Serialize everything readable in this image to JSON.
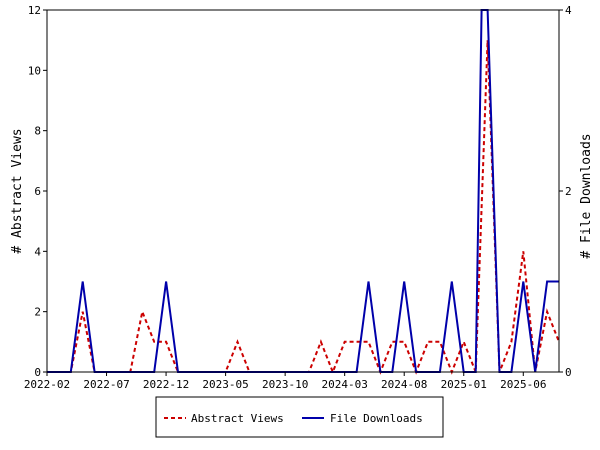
{
  "chart_data": {
    "type": "line",
    "x_tick_labels": [
      "2022-02",
      "2022-07",
      "2022-12",
      "2023-05",
      "2023-10",
      "2024-03",
      "2024-08",
      "2025-01",
      "2025-06"
    ],
    "x_tick_month_index": [
      0,
      5,
      10,
      15,
      20,
      25,
      30,
      35,
      40
    ],
    "left_axis": {
      "label": "# Abstract Views",
      "ylim": [
        0,
        12
      ],
      "ticks": [
        0,
        2,
        4,
        6,
        8,
        10,
        12
      ]
    },
    "right_axis": {
      "label": "# File Downloads",
      "ylim": [
        0,
        4
      ],
      "ticks": [
        0,
        2,
        4
      ]
    },
    "x_range_months": [
      0,
      43
    ],
    "series": [
      {
        "name": "Abstract Views",
        "axis": "left",
        "color": "#cc0000",
        "style": "dashed",
        "points": [
          [
            0,
            0
          ],
          [
            2,
            0
          ],
          [
            3,
            2
          ],
          [
            4,
            0
          ],
          [
            7,
            0
          ],
          [
            8,
            2
          ],
          [
            9,
            1
          ],
          [
            10,
            1
          ],
          [
            11,
            0
          ],
          [
            15,
            0
          ],
          [
            16,
            1
          ],
          [
            17,
            0
          ],
          [
            22,
            0
          ],
          [
            23,
            1
          ],
          [
            24,
            0
          ],
          [
            25,
            1
          ],
          [
            26,
            1
          ],
          [
            27,
            1
          ],
          [
            28,
            0
          ],
          [
            29,
            1
          ],
          [
            30,
            1
          ],
          [
            31,
            0
          ],
          [
            32,
            1
          ],
          [
            33,
            1
          ],
          [
            34,
            0
          ],
          [
            35,
            1
          ],
          [
            36,
            0
          ],
          [
            37,
            11
          ],
          [
            38,
            0
          ],
          [
            39,
            1
          ],
          [
            40,
            4
          ],
          [
            41,
            0
          ],
          [
            42,
            2
          ],
          [
            43,
            1
          ]
        ]
      },
      {
        "name": "File Downloads",
        "axis": "right",
        "color": "#0000aa",
        "style": "solid",
        "points": [
          [
            0,
            0
          ],
          [
            2,
            0
          ],
          [
            3,
            1
          ],
          [
            4,
            0
          ],
          [
            9,
            0
          ],
          [
            10,
            1
          ],
          [
            11,
            0
          ],
          [
            26,
            0
          ],
          [
            27,
            1
          ],
          [
            28,
            0
          ],
          [
            29,
            0
          ],
          [
            30,
            1
          ],
          [
            31,
            0
          ],
          [
            33,
            0
          ],
          [
            34,
            1
          ],
          [
            35,
            0
          ],
          [
            36,
            0
          ],
          [
            36.5,
            4
          ],
          [
            37,
            4
          ],
          [
            38,
            0
          ],
          [
            39,
            0
          ],
          [
            40,
            1
          ],
          [
            41,
            0
          ],
          [
            42,
            1
          ],
          [
            43,
            1
          ]
        ]
      }
    ],
    "legend": {
      "placement": "bottom",
      "entries": [
        "Abstract Views",
        "File Downloads"
      ]
    },
    "grid": false
  }
}
